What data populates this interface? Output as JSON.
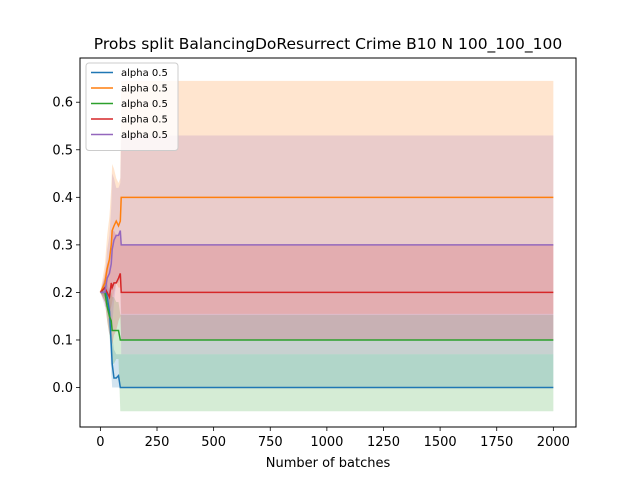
{
  "chart_data": {
    "type": "line",
    "title": "Probs split BalancingDoResurrect Crime B10 N 100_100_100",
    "xlabel": "Number of batches",
    "ylabel": "",
    "xlim": [
      -90,
      2100
    ],
    "ylim": [
      -0.083,
      0.693
    ],
    "xticks": [
      0,
      250,
      500,
      750,
      1000,
      1250,
      1500,
      1750,
      2000
    ],
    "xtick_labels": [
      "0",
      "250",
      "500",
      "750",
      "1000",
      "1250",
      "1500",
      "1750",
      "2000"
    ],
    "yticks": [
      0.0,
      0.1,
      0.2,
      0.3,
      0.4,
      0.5,
      0.6
    ],
    "ytick_labels": [
      "0.0",
      "0.1",
      "0.2",
      "0.3",
      "0.4",
      "0.5",
      "0.6"
    ],
    "grid": false,
    "legend_position": "top-left",
    "series": [
      {
        "name": "alpha 0.5",
        "color": "#1f77b4",
        "x": [
          0,
          20,
          30,
          40,
          48,
          52,
          60,
          70,
          80,
          88,
          92,
          100,
          2000
        ],
        "y": [
          0.2,
          0.21,
          0.19,
          0.16,
          0.09,
          0.05,
          0.02,
          0.02,
          0.025,
          0.0,
          0.0,
          0.0,
          0.0
        ],
        "band_upper": [
          0.2,
          0.23,
          0.22,
          0.2,
          0.15,
          0.11,
          0.08,
          0.07,
          0.07,
          0.07,
          0.07,
          0.07,
          0.07
        ],
        "band_lower": [
          0.2,
          0.19,
          0.16,
          0.12,
          0.03,
          0.0,
          0.0,
          0.0,
          0.0,
          0.0,
          0.0,
          0.0,
          0.0
        ]
      },
      {
        "name": "alpha 0.5",
        "color": "#ff7f0e",
        "x": [
          0,
          20,
          30,
          40,
          48,
          52,
          60,
          70,
          80,
          88,
          92,
          100,
          2000
        ],
        "y": [
          0.2,
          0.22,
          0.25,
          0.27,
          0.3,
          0.33,
          0.34,
          0.35,
          0.34,
          0.35,
          0.4,
          0.4,
          0.4
        ],
        "band_upper": [
          0.2,
          0.26,
          0.32,
          0.36,
          0.42,
          0.47,
          0.46,
          0.44,
          0.43,
          0.44,
          0.645,
          0.645,
          0.645
        ],
        "band_lower": [
          0.2,
          0.18,
          0.17,
          0.16,
          0.17,
          0.18,
          0.2,
          0.22,
          0.21,
          0.21,
          0.155,
          0.155,
          0.155
        ]
      },
      {
        "name": "alpha 0.5",
        "color": "#2ca02c",
        "x": [
          0,
          20,
          30,
          40,
          48,
          52,
          60,
          70,
          80,
          88,
          92,
          100,
          2000
        ],
        "y": [
          0.2,
          0.2,
          0.17,
          0.15,
          0.14,
          0.12,
          0.12,
          0.12,
          0.12,
          0.1,
          0.1,
          0.1,
          0.1
        ],
        "band_upper": [
          0.2,
          0.22,
          0.2,
          0.19,
          0.2,
          0.19,
          0.19,
          0.18,
          0.18,
          0.153,
          0.153,
          0.153,
          0.153
        ],
        "band_lower": [
          0.2,
          0.18,
          0.14,
          0.11,
          0.08,
          0.05,
          0.05,
          0.06,
          0.06,
          -0.05,
          -0.05,
          -0.05,
          -0.05
        ]
      },
      {
        "name": "alpha 0.5",
        "color": "#d62728",
        "x": [
          0,
          20,
          30,
          40,
          48,
          52,
          60,
          70,
          80,
          88,
          92,
          100,
          2000
        ],
        "y": [
          0.2,
          0.21,
          0.2,
          0.19,
          0.22,
          0.21,
          0.22,
          0.22,
          0.23,
          0.24,
          0.2,
          0.2,
          0.2
        ],
        "band_upper": [
          0.2,
          0.24,
          0.26,
          0.27,
          0.31,
          0.33,
          0.33,
          0.32,
          0.32,
          0.33,
          0.3,
          0.3,
          0.3
        ],
        "band_lower": [
          0.2,
          0.18,
          0.14,
          0.11,
          0.13,
          0.09,
          0.11,
          0.12,
          0.14,
          0.15,
          0.1,
          0.1,
          0.1
        ]
      },
      {
        "name": "alpha 0.5",
        "color": "#9467bd",
        "x": [
          0,
          20,
          30,
          40,
          48,
          52,
          60,
          70,
          80,
          88,
          92,
          100,
          2000
        ],
        "y": [
          0.2,
          0.2,
          0.23,
          0.24,
          0.26,
          0.29,
          0.31,
          0.32,
          0.32,
          0.33,
          0.3,
          0.3,
          0.3
        ],
        "band_upper": [
          0.2,
          0.23,
          0.29,
          0.32,
          0.38,
          0.45,
          0.44,
          0.42,
          0.42,
          0.43,
          0.53,
          0.53,
          0.53
        ],
        "band_lower": [
          0.2,
          0.17,
          0.17,
          0.16,
          0.14,
          0.13,
          0.18,
          0.22,
          0.22,
          0.23,
          0.07,
          0.07,
          0.07
        ]
      }
    ]
  }
}
